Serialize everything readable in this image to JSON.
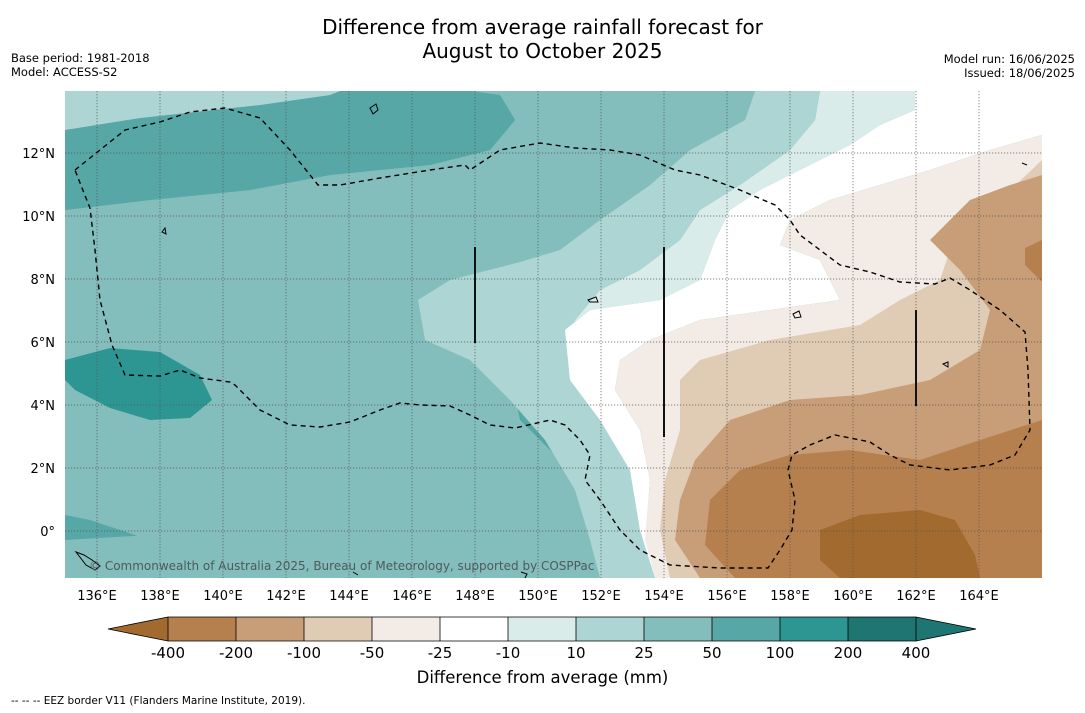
{
  "title_line1": "Difference from average rainfall forecast for",
  "title_line2": "August to October 2025",
  "base_period": "Base period: 1981-2018",
  "model": "Model: ACCESS-S2",
  "model_run": "Model run: 16/06/2025",
  "issued": "Issued: 18/06/2025",
  "copyright": "© Commonwealth of Australia 2025, Bureau of Meteorology, supported by COSPPac",
  "lon_labels": [
    "136°E",
    "138°E",
    "140°E",
    "142°E",
    "144°E",
    "146°E",
    "148°E",
    "150°E",
    "152°E",
    "154°E",
    "156°E",
    "158°E",
    "160°E",
    "162°E",
    "164°E"
  ],
  "lat_labels": [
    "12°N",
    "10°N",
    "8°N",
    "6°N",
    "4°N",
    "2°N",
    "0°"
  ],
  "colorbar": {
    "ticks": [
      "-400",
      "-200",
      "-100",
      "-50",
      "-25",
      "-10",
      "10",
      "25",
      "50",
      "100",
      "200",
      "400"
    ],
    "colors": [
      "#a26a2f",
      "#b5804d",
      "#c89e78",
      "#e0cbb5",
      "#f3ece6",
      "#ffffff",
      "#d9ecea",
      "#acd5d3",
      "#83bebd",
      "#57a7a6",
      "#2e9692",
      "#1e7571"
    ],
    "title": "Difference from average (mm)"
  },
  "footnote": "--  --  -- EEZ border V11 (Flanders Marine Institute, 2019)."
}
